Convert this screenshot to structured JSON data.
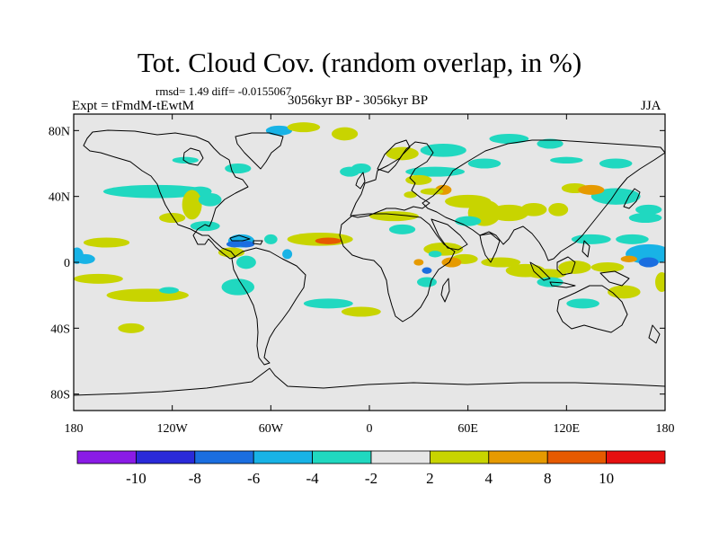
{
  "chart_data": {
    "type": "heatmap",
    "title": "Tot. Cloud Cov. (random overlap, in %)",
    "stats_text": "rmsd= 1.49 diff= -0.0155067",
    "left_label": "Expt = tFmdM-tEwtM",
    "center_label": "3056kyr BP - 3056kyr BP",
    "right_label": "JJA",
    "projection": "cylindrical-equidistant",
    "xlim": [
      -180,
      180
    ],
    "ylim": [
      -90,
      90
    ],
    "x_ticks": [
      {
        "value": -180,
        "label": "180"
      },
      {
        "value": -120,
        "label": "120W"
      },
      {
        "value": -60,
        "label": "60W"
      },
      {
        "value": 0,
        "label": "0"
      },
      {
        "value": 60,
        "label": "60E"
      },
      {
        "value": 120,
        "label": "120E"
      },
      {
        "value": 180,
        "label": "180"
      }
    ],
    "y_ticks": [
      {
        "value": 80,
        "label": "80N"
      },
      {
        "value": 40,
        "label": "40N"
      },
      {
        "value": 0,
        "label": "0"
      },
      {
        "value": -40,
        "label": "40S"
      },
      {
        "value": -80,
        "label": "80S"
      }
    ],
    "colorbar": {
      "levels": [
        "-10",
        "-8",
        "-6",
        "-4",
        "-2",
        "2",
        "4",
        "8",
        "10"
      ],
      "colors": [
        "#8a1be6",
        "#2a2ad9",
        "#1a6ee0",
        "#18b3e6",
        "#20d8c0",
        "#e6e6e6",
        "#c8d400",
        "#e69a00",
        "#e65a00",
        "#e61010"
      ]
    },
    "background_color": "#e6e6e6",
    "anomaly_regions": [
      {
        "lon": 170,
        "lat": 5,
        "rx": 14,
        "ry": 6,
        "bin": 3
      },
      {
        "lon": 170,
        "lat": 0,
        "rx": 6,
        "ry": 3,
        "bin": 2
      },
      {
        "lon": -178,
        "lat": 4,
        "rx": 4,
        "ry": 5,
        "bin": 3
      },
      {
        "lon": -173,
        "lat": 2,
        "rx": 6,
        "ry": 3,
        "bin": 3
      },
      {
        "lon": -160,
        "lat": 12,
        "rx": 14,
        "ry": 3,
        "bin": 6
      },
      {
        "lon": -165,
        "lat": -10,
        "rx": 15,
        "ry": 3,
        "bin": 6
      },
      {
        "lon": -130,
        "lat": 43,
        "rx": 32,
        "ry": 4,
        "bin": 4
      },
      {
        "lon": -103,
        "lat": 43,
        "rx": 7,
        "ry": 3,
        "bin": 4
      },
      {
        "lon": -120,
        "lat": 27,
        "rx": 8,
        "ry": 3,
        "bin": 6
      },
      {
        "lon": -108,
        "lat": 35,
        "rx": 6,
        "ry": 9,
        "bin": 6
      },
      {
        "lon": -97,
        "lat": 38,
        "rx": 7,
        "ry": 4,
        "bin": 4
      },
      {
        "lon": -100,
        "lat": 22,
        "rx": 9,
        "ry": 3,
        "bin": 4
      },
      {
        "lon": -78,
        "lat": 13,
        "rx": 8,
        "ry": 4,
        "bin": 3
      },
      {
        "lon": -82,
        "lat": 11,
        "rx": 5,
        "ry": 2,
        "bin": 2
      },
      {
        "lon": -75,
        "lat": 11,
        "rx": 5,
        "ry": 2,
        "bin": 2
      },
      {
        "lon": -84,
        "lat": 6,
        "rx": 8,
        "ry": 3,
        "bin": 6
      },
      {
        "lon": -75,
        "lat": 0,
        "rx": 6,
        "ry": 4,
        "bin": 4
      },
      {
        "lon": -60,
        "lat": 14,
        "rx": 4,
        "ry": 3,
        "bin": 4
      },
      {
        "lon": -50,
        "lat": 5,
        "rx": 3,
        "ry": 3,
        "bin": 3
      },
      {
        "lon": -30,
        "lat": 14,
        "rx": 20,
        "ry": 4,
        "bin": 6
      },
      {
        "lon": -25,
        "lat": 13,
        "rx": 8,
        "ry": 2,
        "bin": 8
      },
      {
        "lon": -80,
        "lat": -15,
        "rx": 10,
        "ry": 5,
        "bin": 4
      },
      {
        "lon": -135,
        "lat": -20,
        "rx": 25,
        "ry": 4,
        "bin": 6
      },
      {
        "lon": -145,
        "lat": -40,
        "rx": 8,
        "ry": 3,
        "bin": 6
      },
      {
        "lon": -122,
        "lat": -17,
        "rx": 6,
        "ry": 2,
        "bin": 4
      },
      {
        "lon": -25,
        "lat": -25,
        "rx": 15,
        "ry": 3,
        "bin": 4
      },
      {
        "lon": -5,
        "lat": -30,
        "rx": 12,
        "ry": 3,
        "bin": 6
      },
      {
        "lon": -55,
        "lat": 80,
        "rx": 8,
        "ry": 3,
        "bin": 3
      },
      {
        "lon": -40,
        "lat": 82,
        "rx": 10,
        "ry": 3,
        "bin": 6
      },
      {
        "lon": -15,
        "lat": 78,
        "rx": 8,
        "ry": 4,
        "bin": 6
      },
      {
        "lon": -12,
        "lat": 55,
        "rx": 6,
        "ry": 3,
        "bin": 4
      },
      {
        "lon": -5,
        "lat": 57,
        "rx": 6,
        "ry": 3,
        "bin": 4
      },
      {
        "lon": -80,
        "lat": 57,
        "rx": 8,
        "ry": 3,
        "bin": 4
      },
      {
        "lon": -112,
        "lat": 62,
        "rx": 8,
        "ry": 2,
        "bin": 4
      },
      {
        "lon": 45,
        "lat": 68,
        "rx": 14,
        "ry": 4,
        "bin": 4
      },
      {
        "lon": 85,
        "lat": 75,
        "rx": 12,
        "ry": 3,
        "bin": 4
      },
      {
        "lon": 110,
        "lat": 72,
        "rx": 8,
        "ry": 3,
        "bin": 4
      },
      {
        "lon": 20,
        "lat": 66,
        "rx": 10,
        "ry": 4,
        "bin": 6
      },
      {
        "lon": 40,
        "lat": 55,
        "rx": 18,
        "ry": 3,
        "bin": 4
      },
      {
        "lon": 70,
        "lat": 60,
        "rx": 10,
        "ry": 3,
        "bin": 4
      },
      {
        "lon": 120,
        "lat": 62,
        "rx": 10,
        "ry": 2,
        "bin": 4
      },
      {
        "lon": 150,
        "lat": 60,
        "rx": 10,
        "ry": 3,
        "bin": 4
      },
      {
        "lon": 30,
        "lat": 50,
        "rx": 8,
        "ry": 3,
        "bin": 6
      },
      {
        "lon": 45,
        "lat": 44,
        "rx": 5,
        "ry": 3,
        "bin": 7
      },
      {
        "lon": 38,
        "lat": 43,
        "rx": 7,
        "ry": 2,
        "bin": 6
      },
      {
        "lon": 25,
        "lat": 41,
        "rx": 4,
        "ry": 2,
        "bin": 6
      },
      {
        "lon": 60,
        "lat": 37,
        "rx": 14,
        "ry": 4,
        "bin": 6
      },
      {
        "lon": 70,
        "lat": 30,
        "rx": 10,
        "ry": 8,
        "bin": 6
      },
      {
        "lon": 85,
        "lat": 30,
        "rx": 12,
        "ry": 5,
        "bin": 6
      },
      {
        "lon": 100,
        "lat": 32,
        "rx": 8,
        "ry": 4,
        "bin": 6
      },
      {
        "lon": 115,
        "lat": 32,
        "rx": 6,
        "ry": 4,
        "bin": 6
      },
      {
        "lon": 125,
        "lat": 45,
        "rx": 8,
        "ry": 3,
        "bin": 6
      },
      {
        "lon": 150,
        "lat": 40,
        "rx": 15,
        "ry": 5,
        "bin": 4
      },
      {
        "lon": 170,
        "lat": 32,
        "rx": 8,
        "ry": 3,
        "bin": 4
      },
      {
        "lon": 135,
        "lat": 14,
        "rx": 12,
        "ry": 3,
        "bin": 4
      },
      {
        "lon": 160,
        "lat": 14,
        "rx": 10,
        "ry": 3,
        "bin": 4
      },
      {
        "lon": 60,
        "lat": 25,
        "rx": 8,
        "ry": 3,
        "bin": 4
      },
      {
        "lon": 15,
        "lat": 28,
        "rx": 15,
        "ry": 3,
        "bin": 6
      },
      {
        "lon": 20,
        "lat": 20,
        "rx": 8,
        "ry": 3,
        "bin": 4
      },
      {
        "lon": 45,
        "lat": 8,
        "rx": 12,
        "ry": 4,
        "bin": 6
      },
      {
        "lon": 58,
        "lat": 2,
        "rx": 8,
        "ry": 3,
        "bin": 6
      },
      {
        "lon": 50,
        "lat": 0,
        "rx": 6,
        "ry": 3,
        "bin": 7
      },
      {
        "lon": 80,
        "lat": 0,
        "rx": 12,
        "ry": 3,
        "bin": 6
      },
      {
        "lon": 95,
        "lat": -5,
        "rx": 12,
        "ry": 4,
        "bin": 6
      },
      {
        "lon": 108,
        "lat": -7,
        "rx": 12,
        "ry": 3,
        "bin": 6
      },
      {
        "lon": 125,
        "lat": -3,
        "rx": 10,
        "ry": 4,
        "bin": 6
      },
      {
        "lon": 110,
        "lat": -12,
        "rx": 8,
        "ry": 3,
        "bin": 4
      },
      {
        "lon": 145,
        "lat": -3,
        "rx": 10,
        "ry": 3,
        "bin": 6
      },
      {
        "lon": 155,
        "lat": -18,
        "rx": 10,
        "ry": 4,
        "bin": 6
      },
      {
        "lon": 158,
        "lat": 2,
        "rx": 5,
        "ry": 2,
        "bin": 7
      },
      {
        "lon": 178,
        "lat": -12,
        "rx": 4,
        "ry": 6,
        "bin": 6
      },
      {
        "lon": 130,
        "lat": -25,
        "rx": 10,
        "ry": 3,
        "bin": 4
      },
      {
        "lon": 168,
        "lat": 27,
        "rx": 10,
        "ry": 3,
        "bin": 4
      },
      {
        "lon": 35,
        "lat": -12,
        "rx": 6,
        "ry": 3,
        "bin": 4
      },
      {
        "lon": 30,
        "lat": 0,
        "rx": 3,
        "ry": 2,
        "bin": 7
      },
      {
        "lon": 35,
        "lat": -5,
        "rx": 3,
        "ry": 2,
        "bin": 2
      },
      {
        "lon": 40,
        "lat": 5,
        "rx": 4,
        "ry": 2,
        "bin": 4
      },
      {
        "lon": 135,
        "lat": 44,
        "rx": 8,
        "ry": 3,
        "bin": 7
      }
    ]
  }
}
